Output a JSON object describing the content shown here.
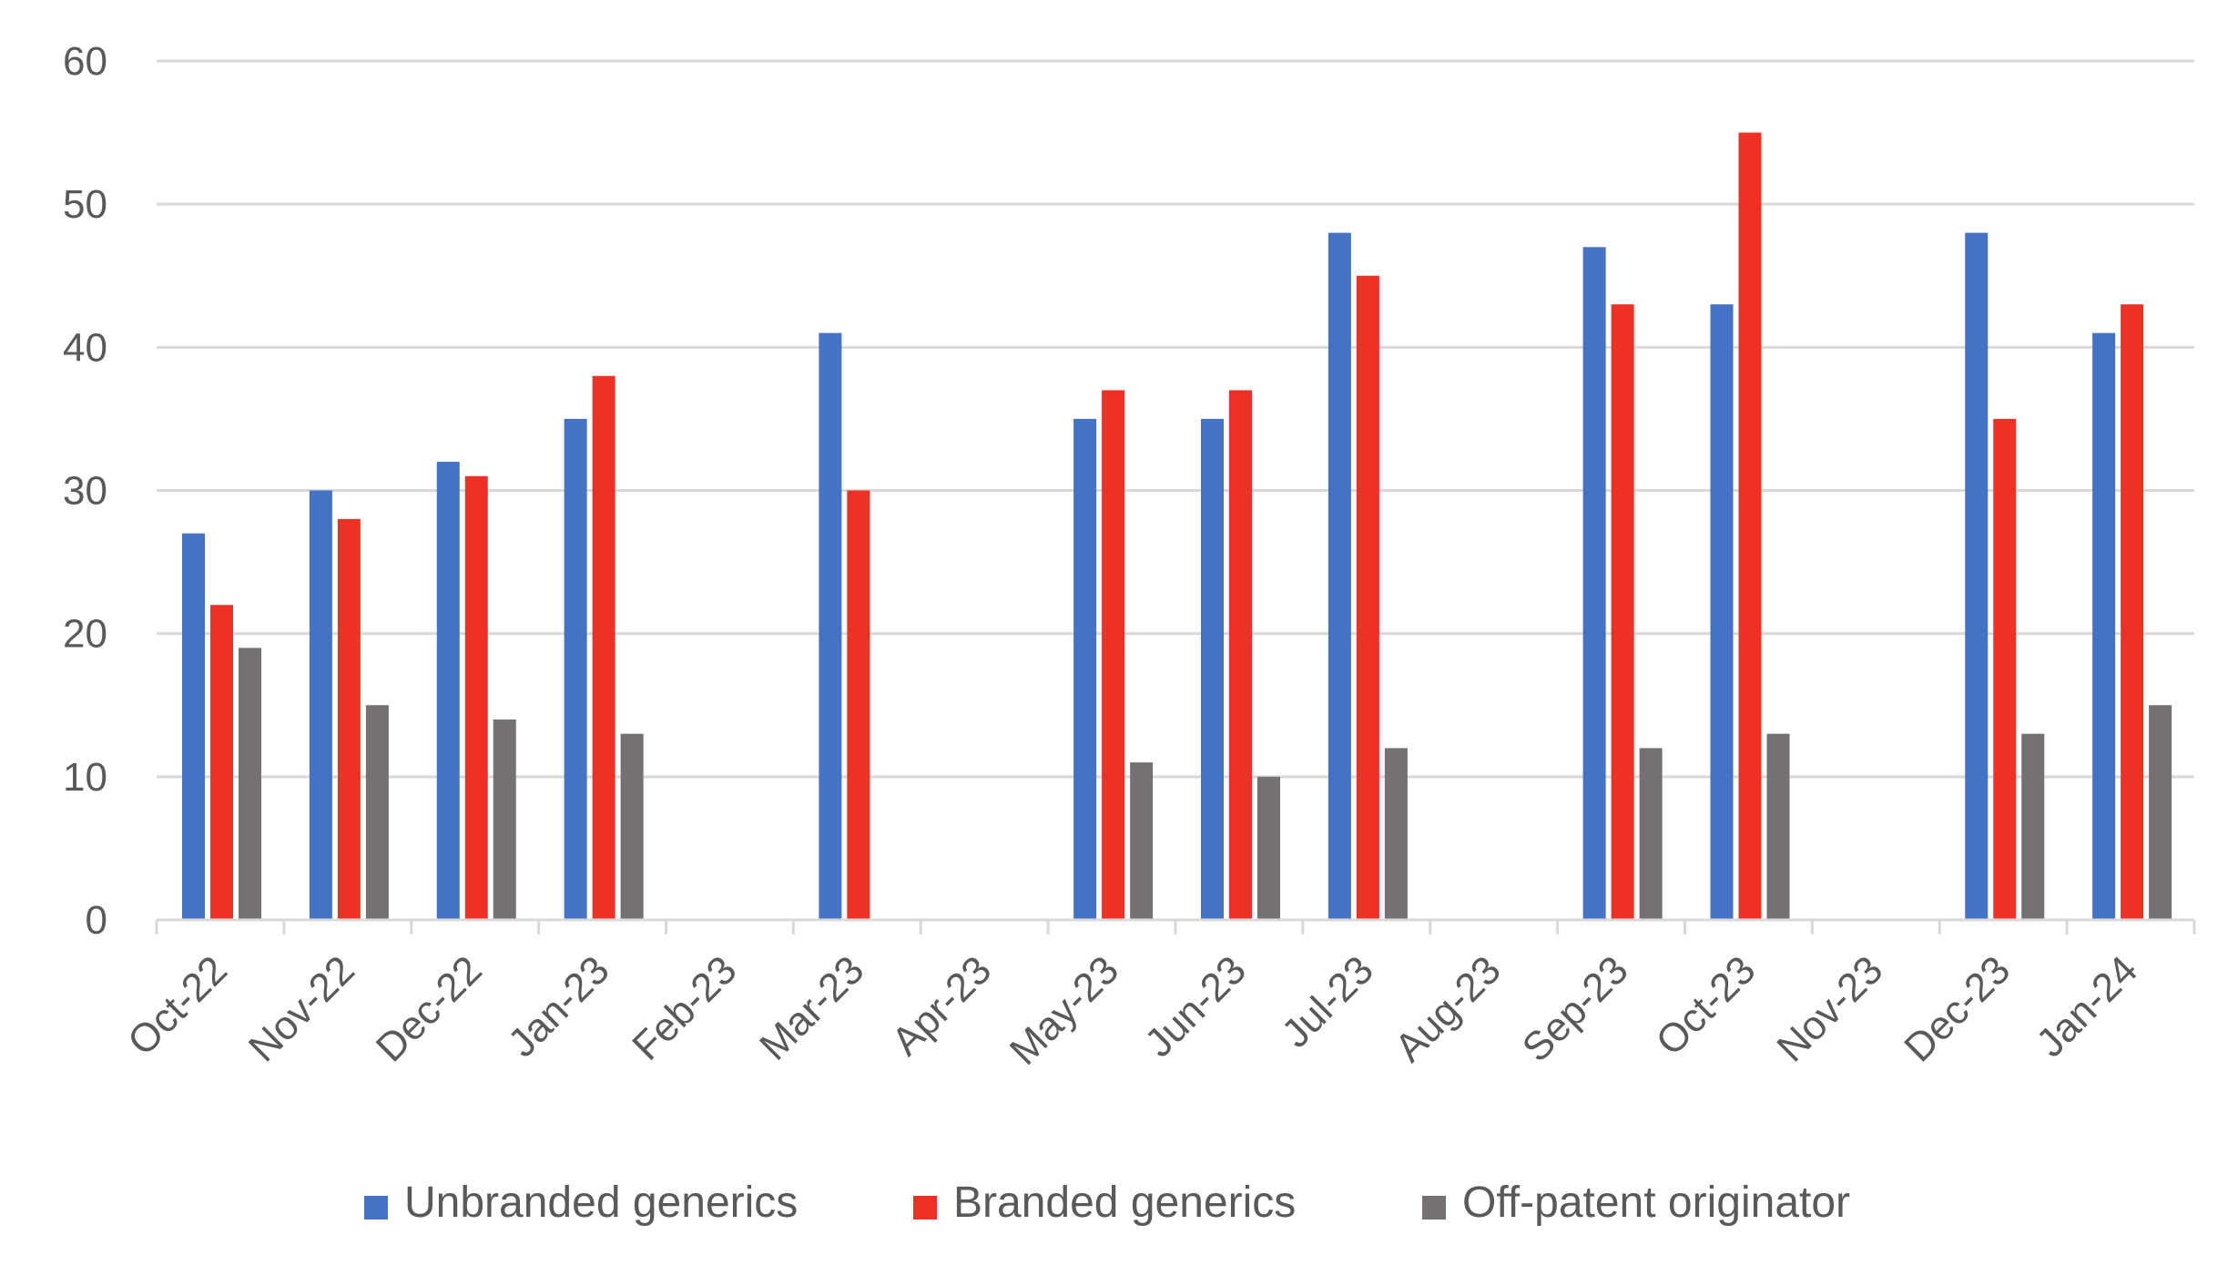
{
  "chart_data": {
    "type": "bar",
    "title": "",
    "xlabel": "",
    "ylabel": "",
    "ylim": [
      0,
      60
    ],
    "yticks": [
      0,
      10,
      20,
      30,
      40,
      50,
      60
    ],
    "grid": true,
    "legend_position": "bottom",
    "categories": [
      "Oct-22",
      "Nov-22",
      "Dec-22",
      "Jan-23",
      "Feb-23",
      "Mar-23",
      "Apr-23",
      "May-23",
      "Jun-23",
      "Jul-23",
      "Aug-23",
      "Sep-23",
      "Oct-23",
      "Nov-23",
      "Dec-23",
      "Jan-24"
    ],
    "series": [
      {
        "name": "Unbranded generics",
        "color": "#4472C4",
        "values": [
          27,
          30,
          32,
          35,
          null,
          41,
          null,
          35,
          35,
          48,
          null,
          47,
          43,
          null,
          48,
          41
        ]
      },
      {
        "name": "Branded generics",
        "color": "#EE3124",
        "values": [
          22,
          28,
          31,
          38,
          null,
          30,
          null,
          37,
          37,
          45,
          null,
          43,
          55,
          null,
          35,
          43
        ]
      },
      {
        "name": "Off-patent originator",
        "color": "#767171",
        "values": [
          19,
          15,
          14,
          13,
          null,
          null,
          null,
          11,
          10,
          12,
          null,
          12,
          13,
          null,
          13,
          15
        ]
      }
    ]
  }
}
